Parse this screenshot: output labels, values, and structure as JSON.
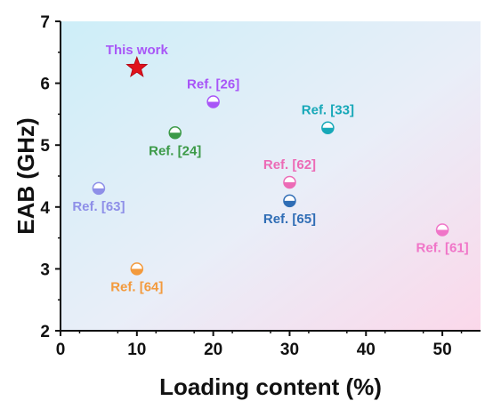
{
  "chart_data": {
    "type": "scatter",
    "xlabel": "Loading content (%)",
    "ylabel": "EAB (GHz)",
    "xlim": [
      0,
      55
    ],
    "ylim": [
      2,
      7
    ],
    "xticks": [
      "0",
      "10",
      "20",
      "30",
      "40",
      "50"
    ],
    "yticks": [
      "2",
      "3",
      "4",
      "5",
      "6",
      "7"
    ],
    "grid": false,
    "points": [
      {
        "label": "This work",
        "x": 10,
        "y": 6.25,
        "marker": "star",
        "color": "#e0121b",
        "label_color": "#a855f7",
        "label_pos": "above"
      },
      {
        "label": "Ref. [26]",
        "x": 20,
        "y": 5.7,
        "marker": "half-circle",
        "color": "#a855f7",
        "label_pos": "above"
      },
      {
        "label": "Ref. [33]",
        "x": 35,
        "y": 5.28,
        "marker": "half-circle",
        "color": "#17a8b8",
        "label_pos": "above"
      },
      {
        "label": "Ref. [24]",
        "x": 15,
        "y": 5.2,
        "marker": "half-circle",
        "color": "#3c9a48",
        "label_pos": "below"
      },
      {
        "label": "Ref. [62]",
        "x": 30,
        "y": 4.4,
        "marker": "half-circle",
        "color": "#ec6bb6",
        "label_pos": "above"
      },
      {
        "label": "Ref. [65]",
        "x": 30,
        "y": 4.1,
        "marker": "half-circle",
        "color": "#2f6db5",
        "label_pos": "below"
      },
      {
        "label": "Ref. [63]",
        "x": 5,
        "y": 4.3,
        "marker": "half-circle",
        "color": "#8e8fe8",
        "label_pos": "below"
      },
      {
        "label": "Ref. [61]",
        "x": 50,
        "y": 3.63,
        "marker": "half-circle",
        "color": "#f075c8",
        "label_pos": "below"
      },
      {
        "label": "Ref. [64]",
        "x": 10,
        "y": 3.0,
        "marker": "half-circle",
        "color": "#f39a3d",
        "label_pos": "below"
      }
    ]
  }
}
